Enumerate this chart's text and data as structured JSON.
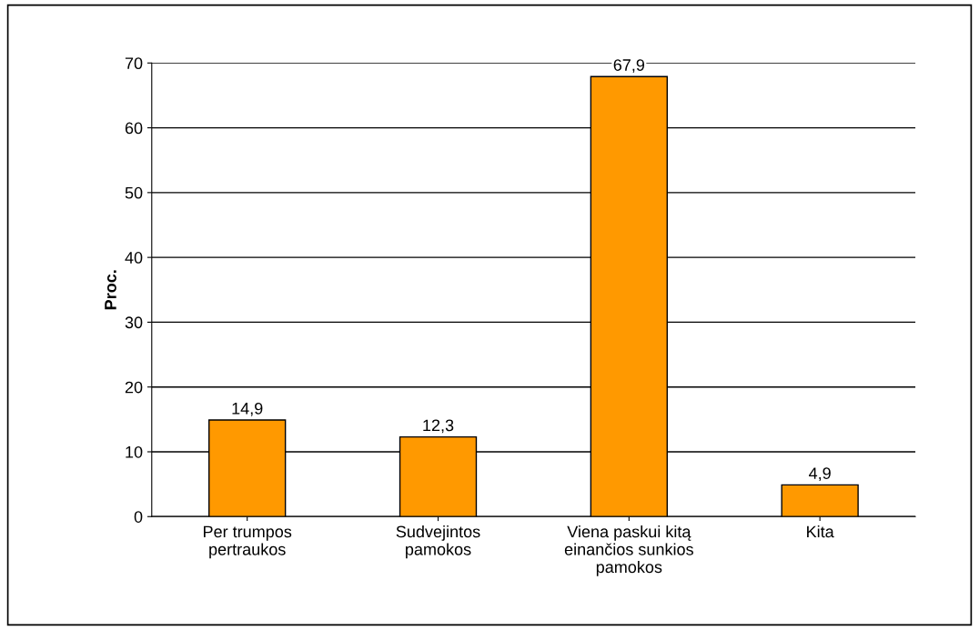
{
  "chart_data": {
    "type": "bar",
    "ylabel": "Proc.",
    "categories": [
      "Per trumpos\npertraukos",
      "Sudvejintos\npamokos",
      "Viena paskui kitą\neinančios sunkios\npamokos",
      "Kita"
    ],
    "values": [
      14.9,
      12.3,
      67.9,
      4.9
    ],
    "value_labels": [
      "14,9",
      "12,3",
      "67,9",
      "4,9"
    ],
    "color": "#ff9900",
    "ylim": [
      0,
      70
    ],
    "yticks": [
      0,
      10,
      20,
      30,
      40,
      50,
      60,
      70
    ],
    "grid": "y"
  }
}
